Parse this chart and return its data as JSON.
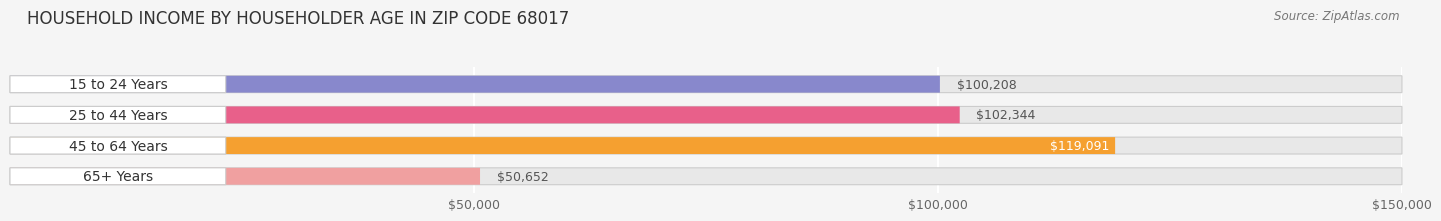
{
  "title": "HOUSEHOLD INCOME BY HOUSEHOLDER AGE IN ZIP CODE 68017",
  "source": "Source: ZipAtlas.com",
  "categories": [
    "15 to 24 Years",
    "25 to 44 Years",
    "45 to 64 Years",
    "65+ Years"
  ],
  "values": [
    100208,
    102344,
    119091,
    50652
  ],
  "bar_colors": [
    "#8888cc",
    "#e8608a",
    "#f5a030",
    "#f0a0a0"
  ],
  "bar_bg_color": "#e8e8e8",
  "value_labels": [
    "$100,208",
    "$102,344",
    "$119,091",
    "$50,652"
  ],
  "value_inside": [
    false,
    false,
    true,
    false
  ],
  "value_label_inside_color": "#ffffff",
  "value_label_outside_color": "#555555",
  "xlim_data": 150000,
  "xticks": [
    50000,
    100000,
    150000
  ],
  "xticklabels": [
    "$50,000",
    "$100,000",
    "$150,000"
  ],
  "background_color": "#f5f5f5",
  "title_fontsize": 12,
  "source_fontsize": 8.5,
  "label_fontsize": 10,
  "value_fontsize": 9,
  "tick_fontsize": 9
}
